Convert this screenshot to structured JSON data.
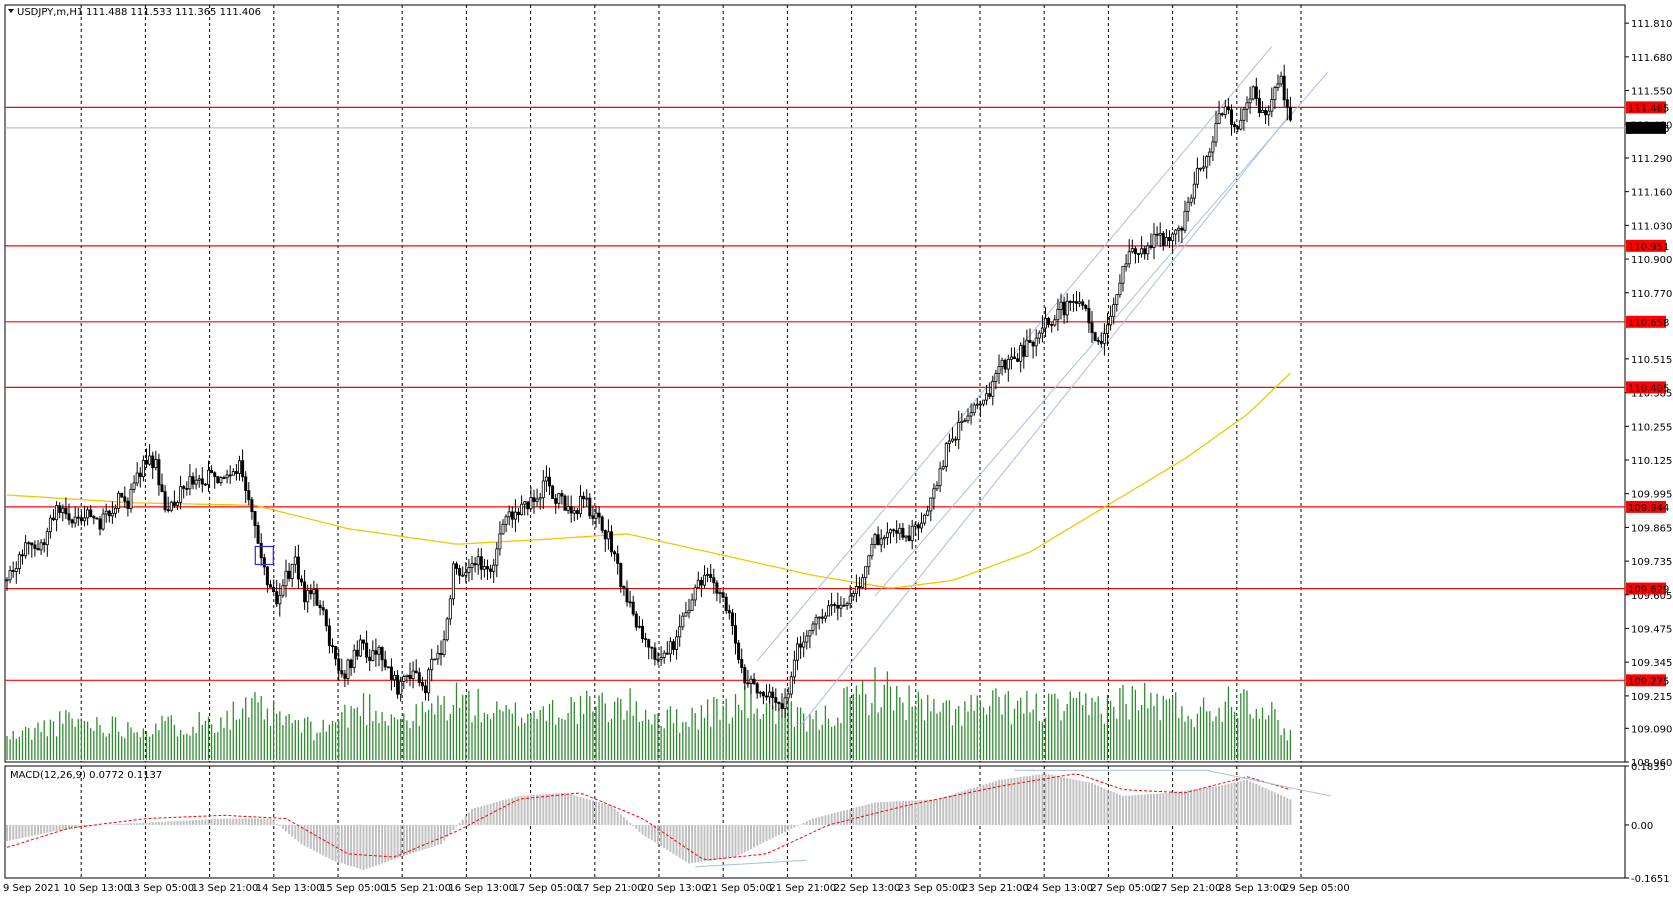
{
  "header": {
    "symbol_label": "USDJPY,m,H1",
    "ohlc": "111.488 111.533 111.365 111.406"
  },
  "colors": {
    "background": "#ffffff",
    "grid": "#000000",
    "candle": "#000000",
    "level_line": "#ff0000",
    "level_label_bg": "#ff0000",
    "ma": "#f0c800",
    "channel": "#a9bfdc",
    "volume": "#2e8b2e",
    "macd_hist": "#c0c0c0",
    "macd_signal": "#ff0000",
    "current_price_bg": "#000000"
  },
  "chart_data": [
    {
      "type": "candlestick",
      "panel": "price",
      "symbol": "USDJPY",
      "timeframe": "H1",
      "ylim": [
        108.96,
        111.88
      ],
      "y_ticks": [
        "111.810",
        "111.680",
        "111.550",
        "111.420",
        "111.290",
        "111.160",
        "111.030",
        "110.900",
        "110.770",
        "110.515",
        "110.385",
        "110.255",
        "110.125",
        "109.995",
        "109.865",
        "109.735",
        "109.605",
        "109.475",
        "109.345",
        "109.215",
        "109.090",
        "108.960"
      ],
      "x_ticks": [
        "9 Sep 2021",
        "10 Sep 13:00",
        "13 Sep 05:00",
        "13 Sep 21:00",
        "14 Sep 13:00",
        "15 Sep 05:00",
        "15 Sep 21:00",
        "16 Sep 13:00",
        "17 Sep 05:00",
        "17 Sep 21:00",
        "20 Sep 13:00",
        "21 Sep 05:00",
        "21 Sep 21:00",
        "22 Sep 13:00",
        "23 Sep 05:00",
        "23 Sep 21:00",
        "24 Sep 13:00",
        "27 Sep 05:00",
        "27 Sep 21:00",
        "28 Sep 13:00",
        "29 Sep 05:00"
      ],
      "close_path": [
        [
          0,
          109.66
        ],
        [
          3,
          109.72
        ],
        [
          6,
          109.8
        ],
        [
          9,
          109.76
        ],
        [
          12,
          109.82
        ],
        [
          15,
          109.92
        ],
        [
          18,
          109.96
        ],
        [
          21,
          109.9
        ],
        [
          24,
          109.87
        ],
        [
          27,
          109.92
        ],
        [
          30,
          109.88
        ],
        [
          33,
          109.93
        ],
        [
          36,
          109.98
        ],
        [
          39,
          109.96
        ],
        [
          42,
          110.06
        ],
        [
          45,
          110.13
        ],
        [
          48,
          110.1
        ],
        [
          51,
          109.95
        ],
        [
          54,
          109.97
        ],
        [
          57,
          110.03
        ],
        [
          60,
          110.05
        ],
        [
          63,
          110.04
        ],
        [
          66,
          110.08
        ],
        [
          69,
          110.06
        ],
        [
          72,
          110.04
        ],
        [
          75,
          110.1
        ],
        [
          78,
          109.96
        ],
        [
          81,
          109.82
        ],
        [
          84,
          109.65
        ],
        [
          87,
          109.57
        ],
        [
          90,
          109.68
        ],
        [
          93,
          109.73
        ],
        [
          96,
          109.6
        ],
        [
          99,
          109.62
        ],
        [
          102,
          109.52
        ],
        [
          105,
          109.38
        ],
        [
          108,
          109.27
        ],
        [
          111,
          109.35
        ],
        [
          114,
          109.42
        ],
        [
          117,
          109.38
        ],
        [
          120,
          109.4
        ],
        [
          123,
          109.31
        ],
        [
          126,
          109.25
        ],
        [
          129,
          109.3
        ],
        [
          132,
          109.28
        ],
        [
          135,
          109.24
        ],
        [
          138,
          109.38
        ],
        [
          141,
          109.41
        ],
        [
          144,
          109.7
        ],
        [
          147,
          109.68
        ],
        [
          150,
          109.72
        ],
        [
          153,
          109.73
        ],
        [
          156,
          109.69
        ],
        [
          159,
          109.85
        ],
        [
          162,
          109.9
        ],
        [
          165,
          109.93
        ],
        [
          168,
          109.95
        ],
        [
          171,
          109.99
        ],
        [
          174,
          110.03
        ],
        [
          177,
          109.98
        ],
        [
          180,
          109.95
        ],
        [
          183,
          109.93
        ],
        [
          186,
          109.97
        ],
        [
          189,
          109.91
        ],
        [
          192,
          109.86
        ],
        [
          195,
          109.8
        ],
        [
          198,
          109.65
        ],
        [
          201,
          109.55
        ],
        [
          204,
          109.48
        ],
        [
          207,
          109.43
        ],
        [
          210,
          109.34
        ],
        [
          213,
          109.38
        ],
        [
          216,
          109.44
        ],
        [
          219,
          109.55
        ],
        [
          222,
          109.62
        ],
        [
          225,
          109.67
        ],
        [
          228,
          109.64
        ],
        [
          231,
          109.6
        ],
        [
          234,
          109.48
        ],
        [
          237,
          109.3
        ],
        [
          240,
          109.25
        ],
        [
          243,
          109.22
        ],
        [
          246,
          109.2
        ],
        [
          249,
          109.17
        ],
        [
          252,
          109.22
        ],
        [
          255,
          109.42
        ],
        [
          258,
          109.45
        ],
        [
          261,
          109.52
        ],
        [
          264,
          109.55
        ],
        [
          267,
          109.57
        ],
        [
          270,
          109.58
        ],
        [
          273,
          109.62
        ],
        [
          276,
          109.65
        ],
        [
          279,
          109.82
        ],
        [
          282,
          109.8
        ],
        [
          285,
          109.85
        ],
        [
          288,
          109.85
        ],
        [
          291,
          109.83
        ],
        [
          294,
          109.88
        ],
        [
          297,
          109.95
        ],
        [
          300,
          110.05
        ],
        [
          303,
          110.16
        ],
        [
          306,
          110.22
        ],
        [
          309,
          110.3
        ],
        [
          312,
          110.35
        ],
        [
          315,
          110.38
        ],
        [
          318,
          110.41
        ],
        [
          321,
          110.48
        ],
        [
          324,
          110.52
        ],
        [
          327,
          110.54
        ],
        [
          330,
          110.58
        ],
        [
          333,
          110.62
        ],
        [
          336,
          110.66
        ],
        [
          339,
          110.7
        ],
        [
          342,
          110.72
        ],
        [
          345,
          110.74
        ],
        [
          348,
          110.7
        ],
        [
          351,
          110.56
        ],
        [
          354,
          110.6
        ],
        [
          357,
          110.72
        ],
        [
          360,
          110.88
        ],
        [
          363,
          110.96
        ],
        [
          366,
          110.92
        ],
        [
          369,
          110.97
        ],
        [
          372,
          110.99
        ],
        [
          375,
          110.96
        ],
        [
          378,
          111.0
        ],
        [
          381,
          111.12
        ],
        [
          384,
          111.25
        ],
        [
          387,
          111.3
        ],
        [
          390,
          111.42
        ],
        [
          393,
          111.5
        ],
        [
          396,
          111.4
        ],
        [
          399,
          111.48
        ],
        [
          402,
          111.55
        ],
        [
          405,
          111.45
        ],
        [
          408,
          111.52
        ],
        [
          411,
          111.6
        ],
        [
          414,
          111.41
        ]
      ],
      "horizontal_levels": [
        "111.485",
        "110.951",
        "110.658",
        "110.405",
        "109.944",
        "109.629",
        "109.275"
      ],
      "current_price": "111.406",
      "moving_average": [
        [
          0,
          109.99
        ],
        [
          40,
          109.96
        ],
        [
          80,
          109.95
        ],
        [
          110,
          109.86
        ],
        [
          145,
          109.8
        ],
        [
          175,
          109.82
        ],
        [
          200,
          109.84
        ],
        [
          230,
          109.76
        ],
        [
          260,
          109.68
        ],
        [
          285,
          109.63
        ],
        [
          305,
          109.66
        ],
        [
          330,
          109.77
        ],
        [
          355,
          109.95
        ],
        [
          380,
          110.13
        ],
        [
          400,
          110.3
        ],
        [
          414,
          110.46
        ]
      ],
      "channel_lines": [
        [
          [
            242,
            109.35
          ],
          [
            408,
            111.72
          ]
        ],
        [
          [
            256,
            109.1
          ],
          [
            414,
            111.46
          ]
        ],
        [
          [
            280,
            109.6
          ],
          [
            426,
            111.62
          ]
        ]
      ],
      "marker_bar": 83
    },
    {
      "type": "bar",
      "panel": "volume",
      "description_values_relative": [
        [
          0,
          0.3
        ],
        [
          20,
          0.55
        ],
        [
          40,
          0.45
        ],
        [
          60,
          0.5
        ],
        [
          80,
          0.7
        ],
        [
          100,
          0.4
        ],
        [
          115,
          0.75
        ],
        [
          130,
          0.55
        ],
        [
          145,
          0.85
        ],
        [
          160,
          0.6
        ],
        [
          175,
          0.7
        ],
        [
          200,
          0.75
        ],
        [
          215,
          0.55
        ],
        [
          240,
          0.8
        ],
        [
          260,
          0.5
        ],
        [
          280,
          1.0
        ],
        [
          300,
          0.65
        ],
        [
          320,
          0.75
        ],
        [
          345,
          0.7
        ],
        [
          365,
          0.85
        ],
        [
          385,
          0.65
        ],
        [
          400,
          0.95
        ],
        [
          414,
          0.35
        ]
      ]
    },
    {
      "type": "bar",
      "panel": "macd",
      "title": "MACD(12,26,9) 0.0772 0.1137",
      "ylim": [
        -0.1651,
        0.1835
      ],
      "y_ticks": [
        "0.1835",
        "0.00",
        "-0.1651"
      ],
      "histogram": [
        [
          0,
          -0.05
        ],
        [
          15,
          -0.02
        ],
        [
          30,
          0.0
        ],
        [
          50,
          0.01
        ],
        [
          70,
          0.02
        ],
        [
          85,
          0.02
        ],
        [
          95,
          -0.06
        ],
        [
          105,
          -0.11
        ],
        [
          115,
          -0.14
        ],
        [
          130,
          -0.09
        ],
        [
          140,
          -0.06
        ],
        [
          150,
          0.05
        ],
        [
          165,
          0.09
        ],
        [
          180,
          0.1
        ],
        [
          195,
          0.06
        ],
        [
          205,
          -0.03
        ],
        [
          220,
          -0.12
        ],
        [
          235,
          -0.1
        ],
        [
          245,
          -0.05
        ],
        [
          260,
          0.02
        ],
        [
          280,
          0.07
        ],
        [
          300,
          0.08
        ],
        [
          320,
          0.14
        ],
        [
          335,
          0.16
        ],
        [
          350,
          0.13
        ],
        [
          360,
          0.09
        ],
        [
          375,
          0.1
        ],
        [
          390,
          0.12
        ],
        [
          400,
          0.14
        ],
        [
          414,
          0.08
        ]
      ],
      "signal": [
        [
          0,
          -0.07
        ],
        [
          20,
          -0.01
        ],
        [
          45,
          0.02
        ],
        [
          70,
          0.03
        ],
        [
          90,
          0.02
        ],
        [
          110,
          -0.09
        ],
        [
          125,
          -0.1
        ],
        [
          145,
          -0.02
        ],
        [
          165,
          0.08
        ],
        [
          185,
          0.1
        ],
        [
          205,
          0.02
        ],
        [
          225,
          -0.11
        ],
        [
          245,
          -0.09
        ],
        [
          265,
          0.0
        ],
        [
          290,
          0.06
        ],
        [
          320,
          0.12
        ],
        [
          345,
          0.16
        ],
        [
          360,
          0.11
        ],
        [
          380,
          0.1
        ],
        [
          400,
          0.15
        ],
        [
          414,
          0.11
        ]
      ],
      "divergence_lines": [
        [
          [
            222,
            -0.13
          ],
          [
            258,
            -0.11
          ]
        ],
        [
          [
            325,
            0.17
          ],
          [
            388,
            0.17
          ]
        ],
        [
          [
            387,
            0.17
          ],
          [
            427,
            0.09
          ]
        ]
      ]
    }
  ]
}
